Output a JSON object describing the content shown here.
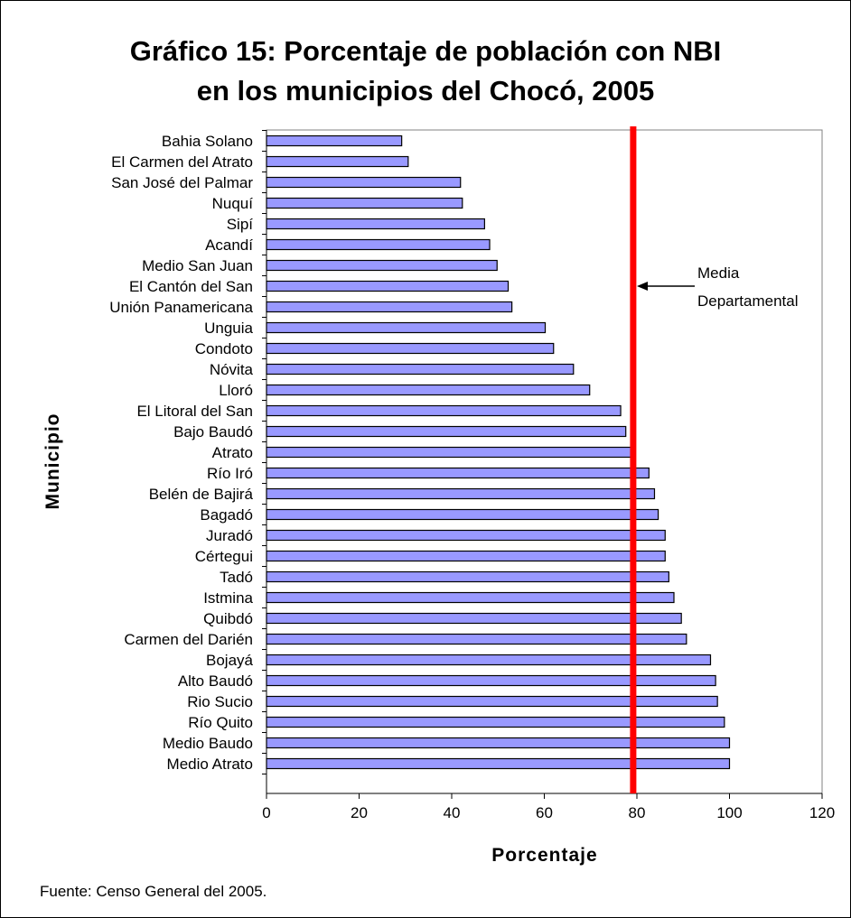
{
  "chart_data": {
    "type": "bar",
    "orientation": "horizontal",
    "title": [
      "Gráfico 15: Porcentaje de población con NBI",
      "en los municipios del Chocó, 2005"
    ],
    "xlabel": "Porcentaje",
    "ylabel": "Municipio",
    "xlim": [
      0,
      120
    ],
    "xticks": [
      "0",
      "20",
      "40",
      "60",
      "80",
      "100",
      "120"
    ],
    "grid": false,
    "categories": [
      "Bahia Solano",
      "El Carmen del Atrato",
      "San José del Palmar",
      "Nuquí",
      "Sipí",
      "Acandí",
      "Medio San Juan",
      "El Cantón del San",
      "Unión Panamericana",
      "Unguia",
      "Condoto",
      "Nóvita",
      "Lloró",
      "El Litoral del San",
      "Bajo Baudó",
      "Atrato",
      "Río Iró",
      "Belén de Bajirá",
      "Bagadó",
      "Juradó",
      "Cértegui",
      "Tadó",
      "Istmina",
      "Quibdó",
      "Carmen del Darién",
      "Bojayá",
      "Alto Baudó",
      "Rio Sucio",
      "Río Quito",
      "Medio Baudo",
      "Medio Atrato"
    ],
    "values": [
      29.2,
      30.6,
      41.9,
      42.3,
      47.1,
      48.2,
      49.8,
      52.2,
      53.0,
      60.2,
      62.0,
      66.3,
      69.8,
      76.5,
      77.6,
      79.4,
      82.6,
      83.8,
      84.6,
      86.1,
      86.1,
      86.9,
      88.0,
      89.6,
      90.7,
      95.9,
      97.0,
      97.4,
      98.9,
      100.0,
      100.0
    ],
    "reference_line": {
      "value": 79.2,
      "label": [
        "Media",
        "Departamental"
      ]
    },
    "colors": {
      "bar_fill": "#9999ff",
      "bar_stroke": "#000000",
      "reference_line": "#ff0000"
    }
  },
  "source_note": "Fuente: Censo General del 2005."
}
